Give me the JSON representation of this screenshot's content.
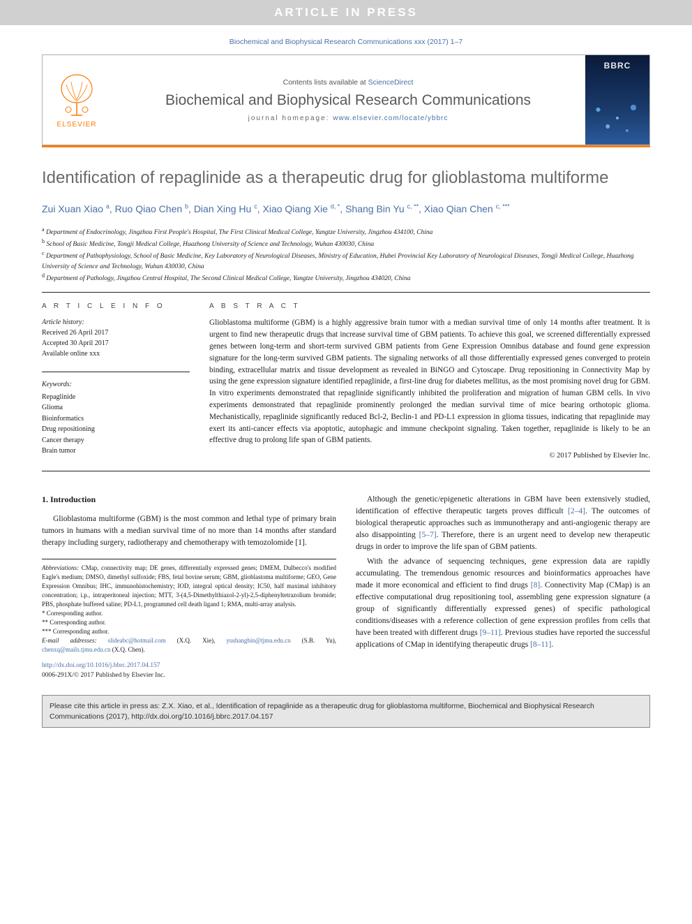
{
  "banner": "ARTICLE IN PRESS",
  "citation_top": "Biochemical and Biophysical Research Communications xxx (2017) 1–7",
  "header": {
    "contents_prefix": "Contents lists available at ",
    "contents_link": "ScienceDirect",
    "journal": "Biochemical and Biophysical Research Communications",
    "homepage_prefix": "journal homepage: ",
    "homepage_url": "www.elsevier.com/locate/ybbrc",
    "publisher_brand": "ELSEVIER",
    "cover_abbr": "BBRC"
  },
  "title": "Identification of repaglinide as a therapeutic drug for glioblastoma multiforme",
  "authors_html": "Zui Xuan Xiao <sup>a</sup>, Ruo Qiao Chen <sup>b</sup>, Dian Xing Hu <sup>c</sup>, Xiao Qiang Xie <sup>d, *</sup>, Shang Bin Yu <sup>c, **</sup>, Xiao Qian Chen <sup>c, ***</sup>",
  "affiliations": [
    {
      "sup": "a",
      "text": "Department of Endocrinology, Jingzhou First People's Hospital, The First Clinical Medical College, Yangtze University, Jingzhou 434100, China"
    },
    {
      "sup": "b",
      "text": "School of Basic Medicine, Tongji Medical College, Huazhong University of Science and Technology, Wuhan 430030, China"
    },
    {
      "sup": "c",
      "text": "Department of Pathophysiology, School of Basic Medicine, Key Laboratory of Neurological Diseases, Ministry of Education, Hubei Provincial Key Laboratory of Neurological Diseases, Tongji Medical College, Huazhong University of Science and Technology, Wuhan 430030, China"
    },
    {
      "sup": "d",
      "text": "Department of Pathology, Jingzhou Central Hospital, The Second Clinical Medical College, Yangtze University, Jingzhou 434020, China"
    }
  ],
  "info": {
    "label": "A R T I C L E   I N F O",
    "history_label": "Article history:",
    "received": "Received 26 April 2017",
    "accepted": "Accepted 30 April 2017",
    "online": "Available online xxx",
    "keywords_label": "Keywords:",
    "keywords": [
      "Repaglinide",
      "Glioma",
      "Bioinformatics",
      "Drug repositioning",
      "Cancer therapy",
      "Brain tumor"
    ]
  },
  "abstract": {
    "label": "A B S T R A C T",
    "text": "Glioblastoma multiforme (GBM) is a highly aggressive brain tumor with a median survival time of only 14 months after treatment. It is urgent to find new therapeutic drugs that increase survival time of GBM patients. To achieve this goal, we screened differentially expressed genes between long-term and short-term survived GBM patients from Gene Expression Omnibus database and found gene expression signature for the long-term survived GBM patients. The signaling networks of all those differentially expressed genes converged to protein binding, extracellular matrix and tissue development as revealed in BiNGO and Cytoscape. Drug repositioning in Connectivity Map by using the gene expression signature identified repaglinide, a first-line drug for diabetes mellitus, as the most promising novel drug for GBM. In vitro experiments demonstrated that repaglinide significantly inhibited the proliferation and migration of human GBM cells. In vivo experiments demonstrated that repaglinide prominently prolonged the median survival time of mice bearing orthotopic glioma. Mechanistically, repaglinide significantly reduced Bcl-2, Beclin-1 and PD-L1 expression in glioma tissues, indicating that repaglinide may exert its anti-cancer effects via apoptotic, autophagic and immune checkpoint signaling. Taken together, repaglinide is likely to be an effective drug to prolong life span of GBM patients.",
    "copyright": "© 2017 Published by Elsevier Inc."
  },
  "body": {
    "intro_heading": "1. Introduction",
    "p1": "Glioblastoma multiforme (GBM) is the most common and lethal type of primary brain tumors in humans with a median survival time of no more than 14 months after standard therapy including surgery, radiotherapy and chemotherapy with temozolomide [1].",
    "p2_a": "Although the genetic/epigenetic alterations in GBM have been extensively studied, identification of effective therapeutic targets proves difficult ",
    "p2_ref1": "[2–4]",
    "p2_b": ". The outcomes of biological therapeutic approaches such as immunotherapy and anti-angiogenic therapy are also disappointing ",
    "p2_ref2": "[5–7]",
    "p2_c": ". Therefore, there is an urgent need to develop new therapeutic drugs in order to improve the life span of GBM patients.",
    "p3_a": "With the advance of sequencing techniques, gene expression data are rapidly accumulating. The tremendous genomic resources and bioinformatics approaches have made it more economical and efficient to find drugs ",
    "p3_ref1": "[8]",
    "p3_b": ". Connectivity Map (CMap) is an effective computational drug repositioning tool, assembling gene expression signature (a group of significantly differentially expressed genes) of specific pathological conditions/diseases with a reference collection of gene expression profiles from cells that have been treated with different drugs ",
    "p3_ref2": "[9–11]",
    "p3_c": ". Previous studies have reported the successful applications of CMap in identifying therapeutic drugs ",
    "p3_ref3": "[8–11]",
    "p3_d": "."
  },
  "footnotes": {
    "abbr_label": "Abbreviations:",
    "abbr_text": " CMap, connectivity map; DE genes, differentially expressed genes; DMEM, Dulbecco's modified Eagle's medium; DMSO, dimethyl sulfoxide; FBS, fetal bovine serum; GBM, glioblastoma multiforme; GEO, Gene Expression Omnibus; IHC, immunohistochemistry; IOD, integral optical density; IC50, half maximal inhibitory concentration; i.p., intraperitoneal injection; MTT, 3-(4,5-Dimethylthiazol-2-yl)-2,5-diphenyltetrazolium bromide; PBS, phosphate buffered saline; PD-L1, programmed cell death ligand 1; RMA, multi-array analysis.",
    "corr1": "* Corresponding author.",
    "corr2": "** Corresponding author.",
    "corr3": "*** Corresponding author.",
    "email_label": "E-mail addresses: ",
    "email1": "slideabc@hotmail.com",
    "email1_who": " (X.Q. Xie), ",
    "email2": "yushangbin@tjmu.edu.cn",
    "email2_who": " (S.B. Yu), ",
    "email3": "chenxq@mails.tjmu.edu.cn",
    "email3_who": " (X.Q. Chen)."
  },
  "doi": {
    "url": "http://dx.doi.org/10.1016/j.bbrc.2017.04.157",
    "issn_line": "0006-291X/© 2017 Published by Elsevier Inc."
  },
  "cite_box": "Please cite this article in press as: Z.X. Xiao, et al., Identification of repaglinide as a therapeutic drug for glioblastoma multiforme, Biochemical and Biophysical Research Communications (2017), http://dx.doi.org/10.1016/j.bbrc.2017.04.157",
  "colors": {
    "banner_bg": "#d0d0d0",
    "link": "#4a6fa5",
    "orange": "#ff7a00",
    "title_gray": "#6a6a6a"
  }
}
